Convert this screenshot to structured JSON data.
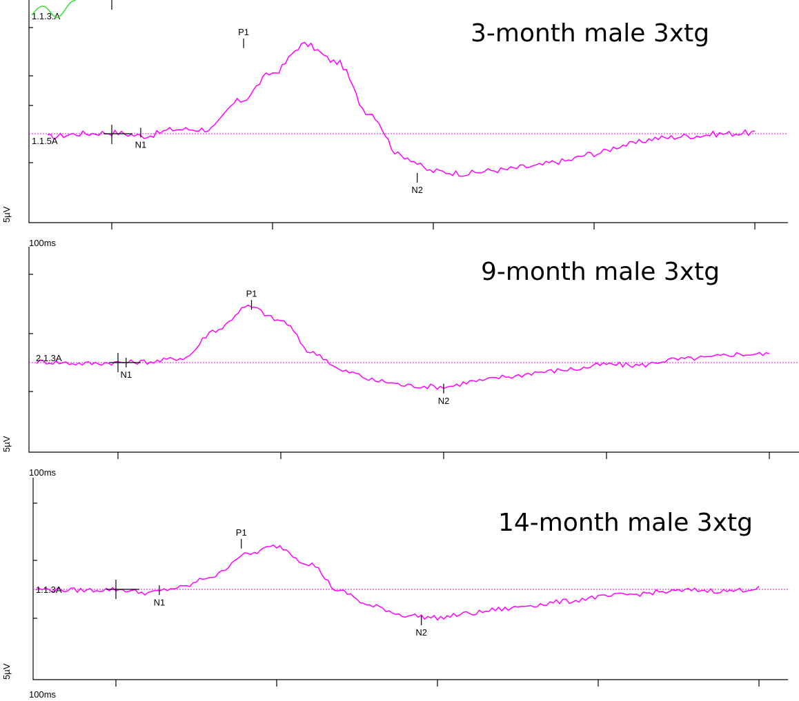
{
  "chart_data": [
    {
      "type": "line",
      "title": "3-month male 3xtg",
      "channel_label": "1.1.5A",
      "top_label": "1.1.3.A",
      "y_scale_label": "5µV",
      "x_scale_label": "100ms",
      "series": [
        {
          "color": "#ff00ff",
          "x": [
            -40,
            -20,
            0,
            20,
            40,
            60,
            80,
            100,
            120,
            140,
            160,
            180,
            200,
            220,
            240,
            260,
            280,
            300,
            320,
            340,
            360,
            380,
            400
          ],
          "y": [
            -0.3,
            0.0,
            0.1,
            -0.2,
            0.4,
            0.4,
            3.0,
            5.5,
            8.1,
            6.5,
            1.9,
            -2.0,
            -3.4,
            -3.6,
            -3.3,
            -3.0,
            -2.5,
            -1.8,
            -1.0,
            -0.4,
            -0.2,
            0.0,
            0.1
          ]
        }
      ],
      "peaks": [
        {
          "label": "N1",
          "x": 18,
          "y": 0.1
        },
        {
          "label": "P1",
          "x": 82,
          "y": 8.2
        },
        {
          "label": "N2",
          "x": 190,
          "y": -4.0
        }
      ]
    },
    {
      "type": "line",
      "title": "9-month male 3xtg",
      "channel_label": "2.1.3A",
      "y_scale_label": "5µV",
      "x_scale_label": "100ms",
      "series": [
        {
          "color": "#ff00ff",
          "x": [
            -50,
            -20,
            0,
            20,
            40,
            60,
            80,
            100,
            120,
            140,
            160,
            180,
            200,
            220,
            240,
            260,
            280,
            300,
            320,
            340,
            360,
            380,
            400
          ],
          "y": [
            0.1,
            -0.1,
            0.0,
            0.1,
            0.5,
            3.5,
            6.0,
            4.5,
            1.0,
            -1.0,
            -2.0,
            -2.5,
            -2.6,
            -2.0,
            -1.5,
            -1.0,
            -0.7,
            -0.2,
            -0.3,
            0.3,
            0.5,
            0.9,
            0.9
          ]
        }
      ],
      "peaks": [
        {
          "label": "N1",
          "x": 5,
          "y": 0.0
        },
        {
          "label": "P1",
          "x": 82,
          "y": 6.2
        },
        {
          "label": "N2",
          "x": 200,
          "y": -2.8
        }
      ]
    },
    {
      "type": "line",
      "title": "14-month male 3xtg",
      "channel_label": "1.1.3A",
      "y_scale_label": "5µV",
      "x_scale_label": "100ms",
      "series": [
        {
          "color": "#ff00ff",
          "x": [
            -50,
            -20,
            0,
            20,
            40,
            60,
            80,
            100,
            120,
            140,
            160,
            180,
            200,
            220,
            240,
            260,
            280,
            300,
            320,
            340,
            360,
            380,
            400
          ],
          "y": [
            0.0,
            -0.1,
            0.0,
            -0.4,
            0.2,
            1.5,
            4.0,
            5.0,
            3.0,
            -0.3,
            -2.0,
            -3.0,
            -3.3,
            -2.8,
            -2.3,
            -1.8,
            -1.4,
            -0.9,
            -0.6,
            -0.3,
            -0.1,
            -0.2,
            0.1
          ]
        }
      ],
      "peaks": [
        {
          "label": "N1",
          "x": 27,
          "y": -0.1
        },
        {
          "label": "P1",
          "x": 78,
          "y": 5.3
        },
        {
          "label": "N2",
          "x": 190,
          "y": -3.6
        }
      ]
    }
  ]
}
